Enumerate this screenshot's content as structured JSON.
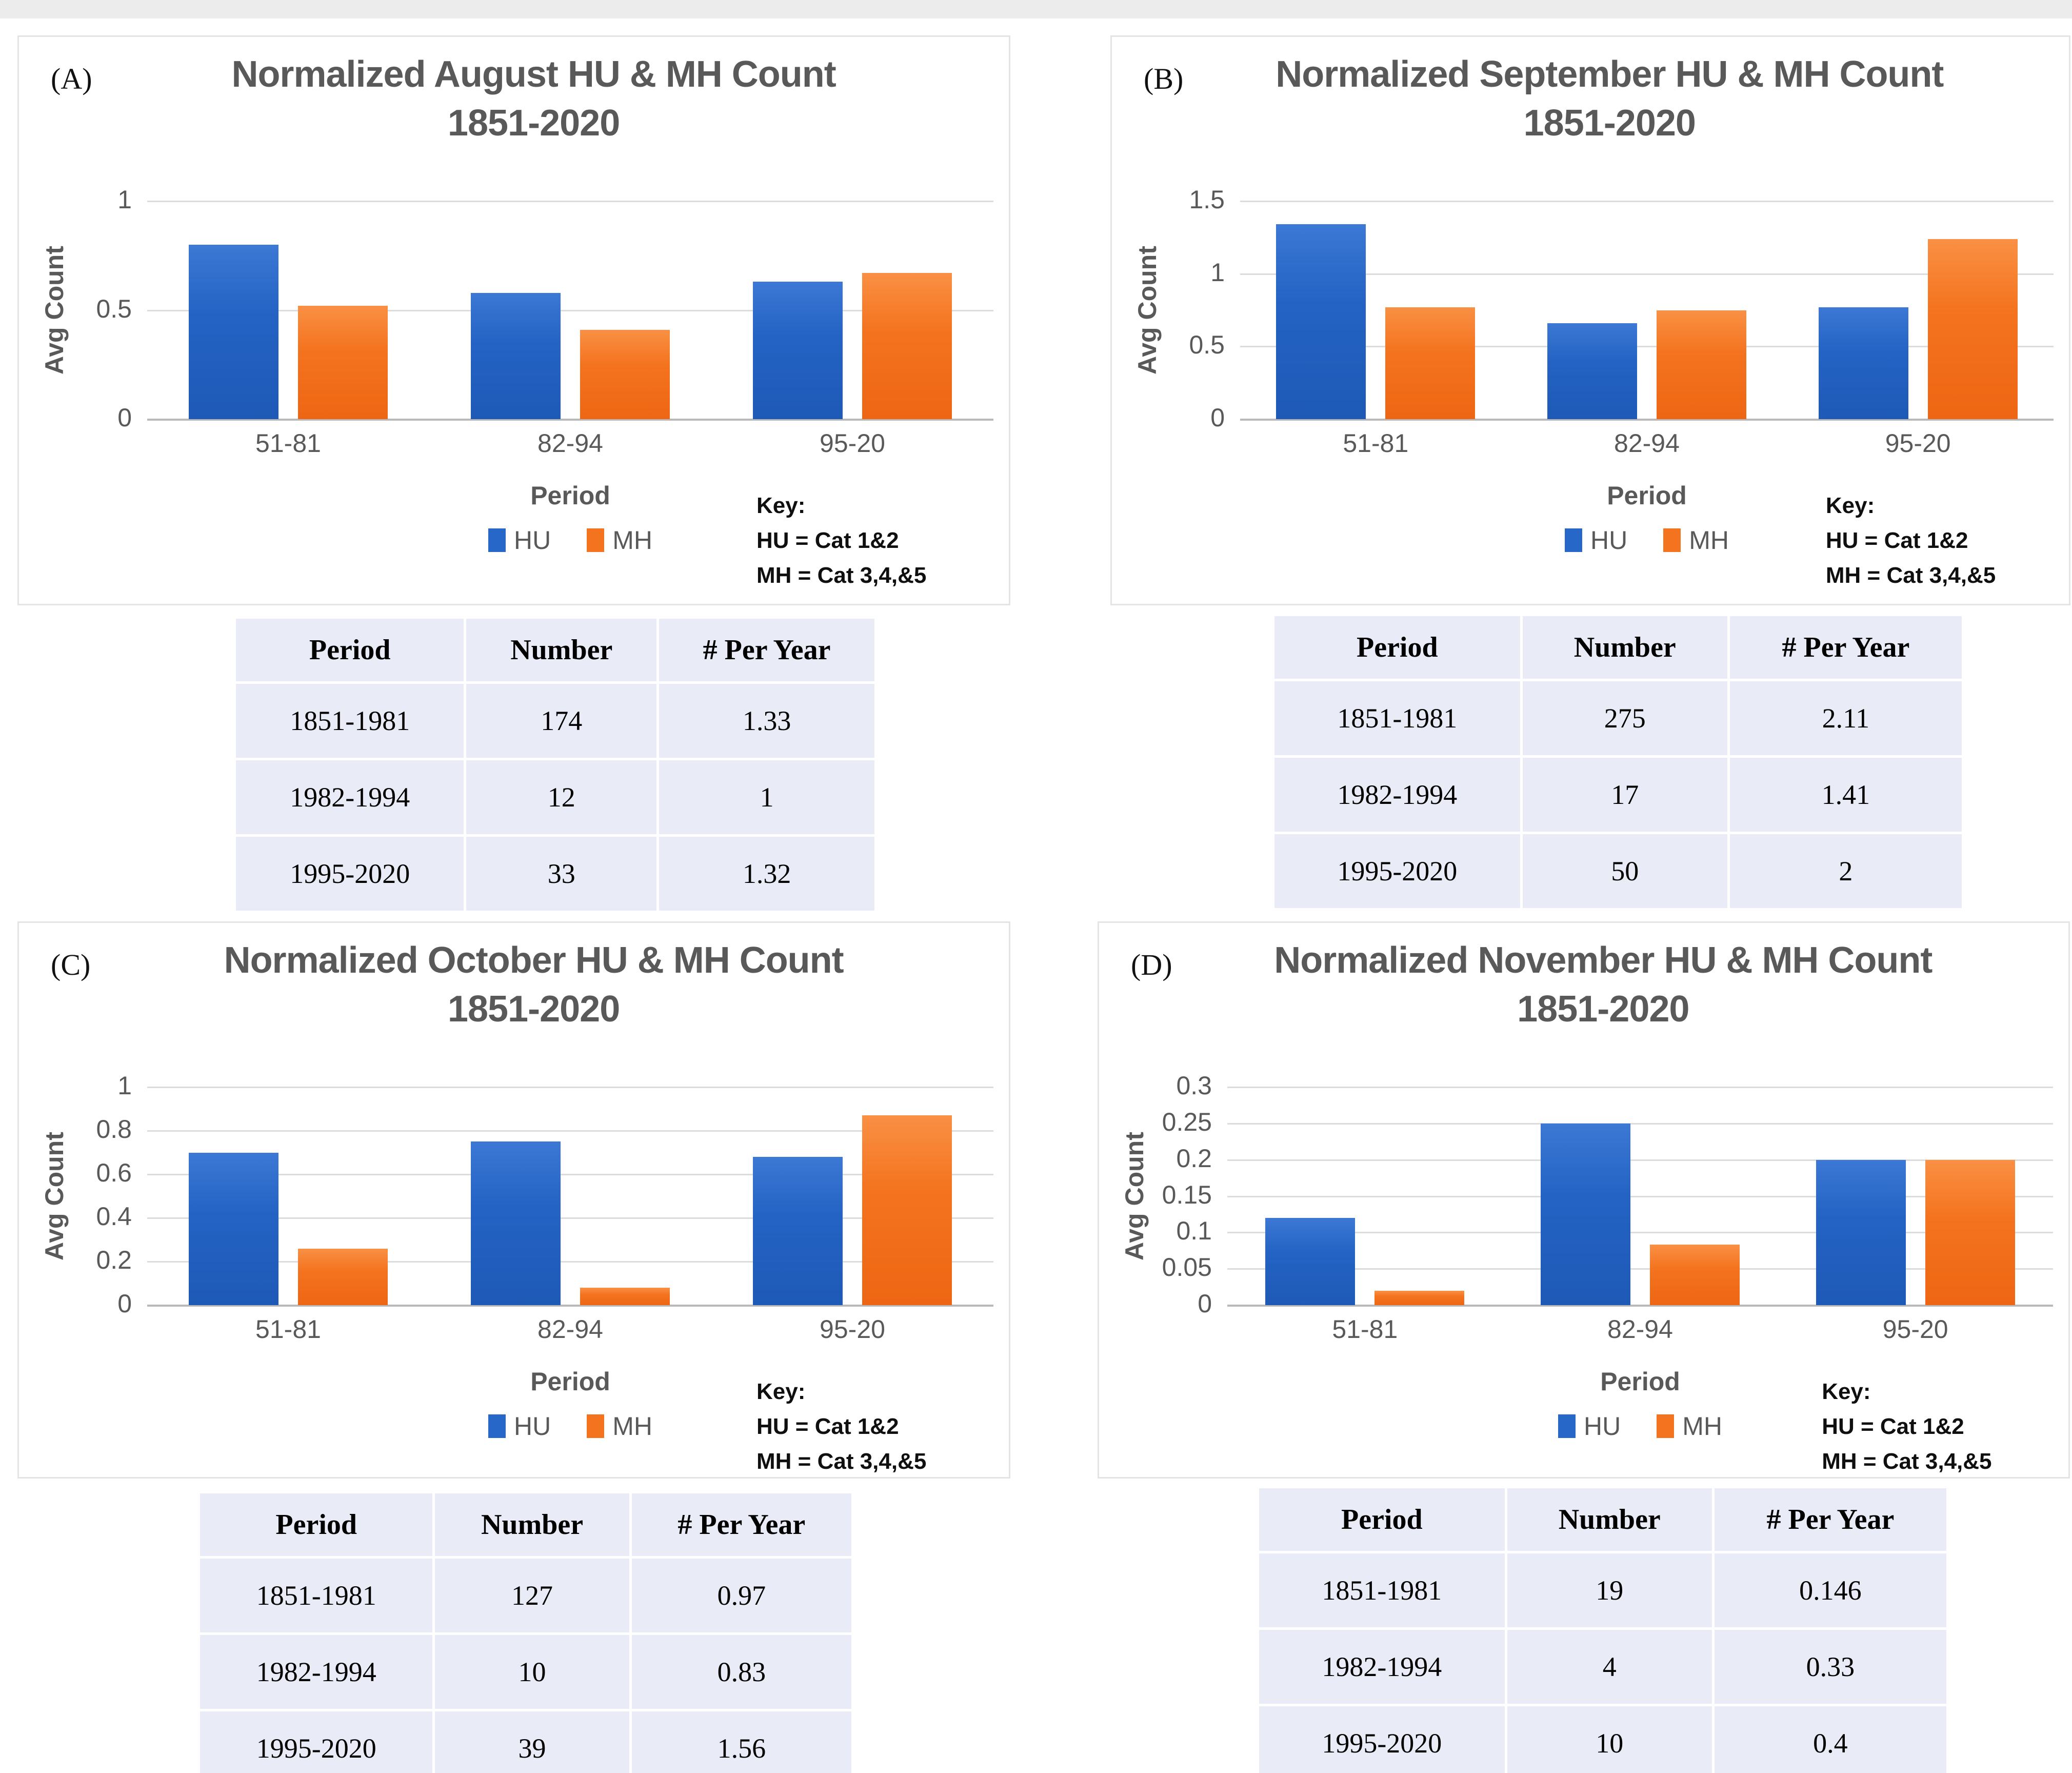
{
  "figure": {
    "background": "#ffffff",
    "panel_border_color": "#e4e4e4",
    "title_color": "#595959",
    "hu_color": "#2767c8",
    "mh_color": "#f4731e",
    "table_cell_color": "#e9ebf6"
  },
  "axis": {
    "y_label": "Avg Count",
    "x_label": "Period"
  },
  "key": {
    "heading": "Key:",
    "line1": "HU = Cat 1&2",
    "line2": "MH = Cat 3,4,&5"
  },
  "legend": [
    {
      "label": "HU",
      "color": "#2767c8"
    },
    {
      "label": "MH",
      "color": "#f4731e"
    }
  ],
  "table_headers": [
    "Period",
    "Number",
    "# Per Year"
  ],
  "chart_data": [
    {
      "id": "A",
      "panel_label": "(A)",
      "type": "bar",
      "title": "Normalized August HU & MH Count",
      "subtitle": "1851-2020",
      "xlabel": "Period",
      "ylabel": "Avg Count",
      "categories": [
        "51-81",
        "82-94",
        "95-20"
      ],
      "series": [
        {
          "name": "HU",
          "values": [
            0.8,
            0.58,
            0.63
          ]
        },
        {
          "name": "MH",
          "values": [
            0.52,
            0.41,
            0.67
          ]
        }
      ],
      "ylim": [
        0,
        1
      ],
      "yticks": [
        "1",
        "0.5",
        "0"
      ],
      "grid": true,
      "legend_position": "bottom",
      "table": {
        "rows": [
          [
            "1851-1981",
            "174",
            "1.33"
          ],
          [
            "1982-1994",
            "12",
            "1"
          ],
          [
            "1995-2020",
            "33",
            "1.32"
          ]
        ]
      }
    },
    {
      "id": "B",
      "panel_label": "(B)",
      "type": "bar",
      "title": "Normalized September HU & MH Count",
      "subtitle": "1851-2020",
      "xlabel": "Period",
      "ylabel": "Avg Count",
      "categories": [
        "51-81",
        "82-94",
        "95-20"
      ],
      "series": [
        {
          "name": "HU",
          "values": [
            1.34,
            0.66,
            0.77
          ]
        },
        {
          "name": "MH",
          "values": [
            0.77,
            0.75,
            1.24
          ]
        }
      ],
      "ylim": [
        0,
        1.5
      ],
      "yticks": [
        "1.5",
        "1",
        "0.5",
        "0"
      ],
      "grid": true,
      "legend_position": "bottom",
      "table": {
        "rows": [
          [
            "1851-1981",
            "275",
            "2.11"
          ],
          [
            "1982-1994",
            "17",
            "1.41"
          ],
          [
            "1995-2020",
            "50",
            "2"
          ]
        ]
      }
    },
    {
      "id": "C",
      "panel_label": "(C)",
      "type": "bar",
      "title": "Normalized October HU & MH Count",
      "subtitle": "1851-2020",
      "xlabel": "Period",
      "ylabel": "Avg Count",
      "categories": [
        "51-81",
        "82-94",
        "95-20"
      ],
      "series": [
        {
          "name": "HU",
          "values": [
            0.7,
            0.75,
            0.68
          ]
        },
        {
          "name": "MH",
          "values": [
            0.26,
            0.08,
            0.87
          ]
        }
      ],
      "ylim": [
        0,
        1
      ],
      "yticks": [
        "1",
        "0.8",
        "0.6",
        "0.4",
        "0.2",
        "0"
      ],
      "grid": true,
      "legend_position": "bottom",
      "table": {
        "rows": [
          [
            "1851-1981",
            "127",
            "0.97"
          ],
          [
            "1982-1994",
            "10",
            "0.83"
          ],
          [
            "1995-2020",
            "39",
            "1.56"
          ]
        ]
      }
    },
    {
      "id": "D",
      "panel_label": "(D)",
      "type": "bar",
      "title": "Normalized November HU & MH Count",
      "subtitle": "1851-2020",
      "xlabel": "Period",
      "ylabel": "Avg Count",
      "categories": [
        "51-81",
        "82-94",
        "95-20"
      ],
      "series": [
        {
          "name": "HU",
          "values": [
            0.12,
            0.25,
            0.2
          ]
        },
        {
          "name": "MH",
          "values": [
            0.02,
            0.083,
            0.2
          ]
        }
      ],
      "ylim": [
        0,
        0.3
      ],
      "yticks": [
        "0.3",
        "0.25",
        "0.2",
        "0.15",
        "0.1",
        "0.05",
        "0"
      ],
      "grid": true,
      "legend_position": "bottom",
      "table": {
        "rows": [
          [
            "1851-1981",
            "19",
            "0.146"
          ],
          [
            "1982-1994",
            "4",
            "0.33"
          ],
          [
            "1995-2020",
            "10",
            "0.4"
          ]
        ]
      }
    }
  ]
}
